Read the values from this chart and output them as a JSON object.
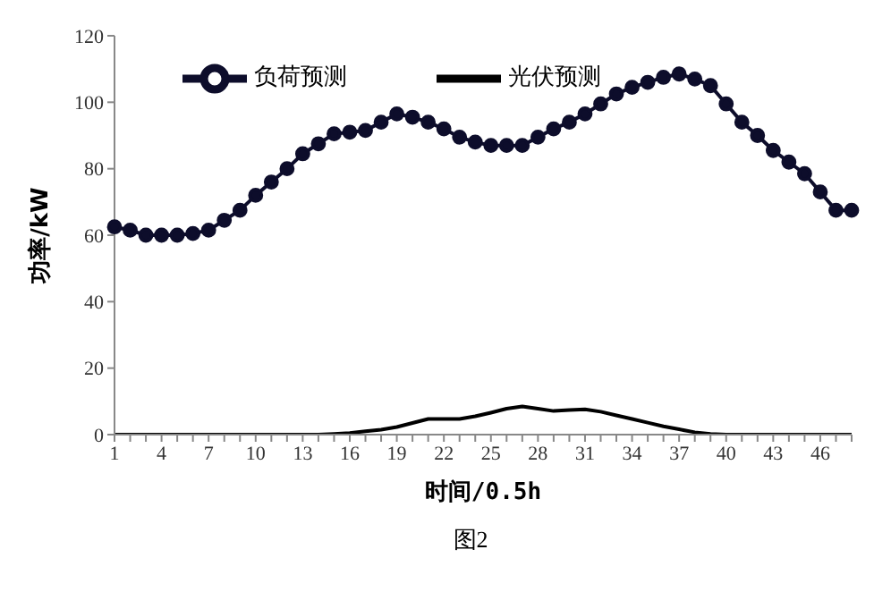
{
  "chart_data": {
    "type": "line",
    "xlabel": "时间/0.5h",
    "ylabel": "功率/kW",
    "annotations": [
      "图2"
    ],
    "categories": [
      "1",
      null,
      null,
      "4",
      null,
      null,
      "7",
      null,
      null,
      "10",
      null,
      null,
      "13",
      null,
      null,
      "16",
      null,
      null,
      "19",
      null,
      null,
      "22",
      null,
      null,
      "25",
      null,
      null,
      "28",
      null,
      null,
      "31",
      null,
      null,
      "34",
      null,
      null,
      "37",
      null,
      null,
      "40",
      null,
      null,
      "43",
      null,
      null,
      "46",
      null,
      null
    ],
    "series": [
      {
        "name": "负荷预测",
        "color": "#0d0d2b",
        "marker": "circle",
        "values": [
          62.5,
          61.5,
          60,
          60,
          60,
          60.5,
          61.5,
          64.5,
          67.5,
          72,
          76,
          80,
          84.5,
          87.5,
          90.5,
          91,
          91.5,
          94,
          96.5,
          95.5,
          94,
          92,
          89.5,
          88,
          87,
          87,
          87,
          89.5,
          92,
          94,
          96.5,
          99.5,
          102.5,
          104.5,
          106,
          107.5,
          108.5,
          107,
          105,
          99.5,
          94,
          90,
          85.5,
          82,
          78.5,
          73,
          67.5,
          67.5
        ]
      },
      {
        "name": "光伏预测",
        "color": "#000000",
        "marker": "none",
        "values": [
          0,
          0,
          0,
          0,
          0,
          0,
          0,
          0,
          0,
          0,
          0,
          0,
          0,
          0,
          0.2,
          0.5,
          1,
          1.5,
          2.3,
          3.5,
          4.7,
          4.7,
          4.7,
          5.5,
          6.6,
          7.8,
          8.5,
          7.8,
          7.1,
          7.4,
          7.6,
          6.9,
          5.8,
          4.7,
          3.6,
          2.5,
          1.6,
          0.7,
          0.2,
          0,
          0,
          0,
          0,
          0,
          0,
          0,
          0,
          0
        ]
      }
    ],
    "ylim": [
      0,
      120
    ],
    "yticks": [
      0,
      20,
      40,
      60,
      80,
      100,
      120
    ],
    "grid": false,
    "legend": "top",
    "line_style": "solid"
  }
}
